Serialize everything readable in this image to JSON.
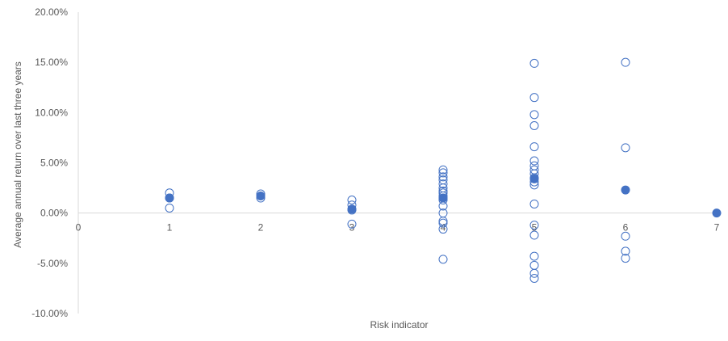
{
  "chart_data": {
    "type": "scatter",
    "title": "",
    "xlabel": "Risk indicator",
    "ylabel": "Average annual return over last three years",
    "xlim": [
      0,
      7
    ],
    "ylim": [
      -10,
      20
    ],
    "x_ticks": [
      "0",
      "1",
      "2",
      "3",
      "4",
      "5",
      "6",
      "7"
    ],
    "y_ticks": [
      "-10.00%",
      "-5.00%",
      "0.00%",
      "5.00%",
      "10.00%",
      "15.00%",
      "20.00%"
    ],
    "grid": false,
    "legend": "none",
    "colors": {
      "marker": "#4472c4",
      "axis": "#d9d9d9",
      "text": "#595959"
    },
    "series": [
      {
        "marker": "hollow-circle",
        "points": [
          [
            1,
            2.0
          ],
          [
            1,
            1.5
          ],
          [
            1,
            0.5
          ],
          [
            2,
            1.9
          ],
          [
            2,
            1.5
          ],
          [
            3,
            1.3
          ],
          [
            3,
            0.8
          ],
          [
            3,
            0.3
          ],
          [
            3,
            -1.1
          ],
          [
            4,
            4.3
          ],
          [
            4,
            4.0
          ],
          [
            4,
            3.6
          ],
          [
            4,
            3.3
          ],
          [
            4,
            2.9
          ],
          [
            4,
            2.5
          ],
          [
            4,
            2.2
          ],
          [
            4,
            2.0
          ],
          [
            4,
            1.7
          ],
          [
            4,
            1.5
          ],
          [
            4,
            1.3
          ],
          [
            4,
            0.7
          ],
          [
            4,
            0.0
          ],
          [
            4,
            -0.8
          ],
          [
            4,
            -1.0
          ],
          [
            4,
            -1.6
          ],
          [
            4,
            -4.6
          ],
          [
            5,
            14.9
          ],
          [
            5,
            11.5
          ],
          [
            5,
            9.8
          ],
          [
            5,
            8.7
          ],
          [
            5,
            6.6
          ],
          [
            5,
            5.2
          ],
          [
            5,
            4.7
          ],
          [
            5,
            4.3
          ],
          [
            5,
            3.9
          ],
          [
            5,
            3.5
          ],
          [
            5,
            3.1
          ],
          [
            5,
            2.8
          ],
          [
            5,
            0.9
          ],
          [
            5,
            -1.2
          ],
          [
            5,
            -2.2
          ],
          [
            5,
            -4.3
          ],
          [
            5,
            -5.2
          ],
          [
            5,
            -6.0
          ],
          [
            5,
            -6.5
          ],
          [
            6,
            15.0
          ],
          [
            6,
            6.5
          ],
          [
            6,
            -2.3
          ],
          [
            6,
            -3.8
          ],
          [
            6,
            -4.5
          ]
        ]
      },
      {
        "marker": "filled-circle",
        "points": [
          [
            1,
            1.5
          ],
          [
            2,
            1.7
          ],
          [
            3,
            0.4
          ],
          [
            4,
            1.5
          ],
          [
            5,
            3.4
          ],
          [
            6,
            2.3
          ],
          [
            7,
            0.0
          ]
        ]
      }
    ]
  }
}
